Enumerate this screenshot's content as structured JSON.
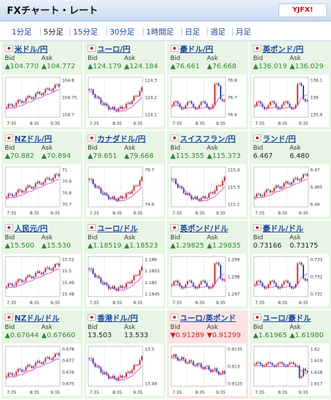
{
  "header": {
    "title": "FXチャート・レート",
    "logo": "YJFX!"
  },
  "tabs": [
    "1分足",
    "5分足",
    "15分足",
    "30分足",
    "1時間足",
    "日足",
    "週足",
    "月足"
  ],
  "active_tab": "5分足",
  "labels": {
    "bid": "Bid",
    "ask": "Ask"
  },
  "x_ticks": [
    "7:35",
    "8:35",
    "9:35"
  ],
  "pairs": [
    {
      "name": "米ドル/円",
      "bid": "104.770",
      "ask": "104.772",
      "dir": "up",
      "yticks": [
        "104.8",
        "104.75",
        "104.7"
      ],
      "shape": "rise"
    },
    {
      "name": "ユーロ/円",
      "bid": "124.179",
      "ask": "124.184",
      "dir": "up",
      "yticks": [
        "124.3",
        "124.2",
        "124.1"
      ],
      "shape": "v"
    },
    {
      "name": "豪ドル/円",
      "bid": "76.661",
      "ask": "76.668",
      "dir": "up",
      "yticks": [
        "76.8",
        "76.7",
        "76.6"
      ],
      "shape": "spike"
    },
    {
      "name": "英ポンド/円",
      "bid": "136.019",
      "ask": "136.029",
      "dir": "up",
      "yticks": [
        "136.1",
        "136",
        "135.9"
      ],
      "shape": "spike"
    },
    {
      "name": "NZドル/円",
      "bid": "70.882",
      "ask": "70.894",
      "dir": "up",
      "yticks": [
        "71",
        "70.9",
        "70.8",
        "70.7"
      ],
      "shape": "rise"
    },
    {
      "name": "カナダドル/円",
      "bid": "79.651",
      "ask": "79.668",
      "dir": "up",
      "yticks": [
        "79.7",
        "79.6"
      ],
      "shape": "v"
    },
    {
      "name": "スイスフラン/円",
      "bid": "115.355",
      "ask": "115.373",
      "dir": "up",
      "yticks": [
        "115.4",
        "115.3",
        "115.2"
      ],
      "shape": "v"
    },
    {
      "name": "ランド/円",
      "bid": "6.467",
      "ask": "6.480",
      "dir": "neutral",
      "yticks": [
        "6.47",
        "6.465",
        "6.46"
      ],
      "shape": "rise"
    },
    {
      "name": "人民元/円",
      "bid": "15.500",
      "ask": "15.530",
      "dir": "up",
      "yticks": [
        "15.51",
        "15.5",
        "15.49",
        "15.48"
      ],
      "shape": "rise"
    },
    {
      "name": "ユーロ/ドル",
      "bid": "1.18519",
      "ask": "1.18523",
      "dir": "up",
      "yticks": [
        "1.186",
        "1.1855",
        "1.185",
        "1.1845"
      ],
      "shape": "v"
    },
    {
      "name": "英ポンド/ドル",
      "bid": "1.29825",
      "ask": "1.29835",
      "dir": "up",
      "yticks": [
        "1.299",
        "1.298",
        "1.297"
      ],
      "shape": "spike"
    },
    {
      "name": "豪ドル/ドル",
      "bid": "0.73166",
      "ask": "0.73175",
      "dir": "neutral",
      "yticks": [
        "0.733",
        "0.732",
        "0.731"
      ],
      "shape": "spike"
    },
    {
      "name": "NZドル/ドル",
      "bid": "0.67644",
      "ask": "0.67660",
      "dir": "up",
      "yticks": [
        "0.678",
        "0.677",
        "0.676",
        "0.675"
      ],
      "shape": "rise"
    },
    {
      "name": "香港ドル/円",
      "bid": "13.503",
      "ask": "13.533",
      "dir": "neutral",
      "yticks": [
        "13.5",
        "13.49"
      ],
      "shape": "v"
    },
    {
      "name": "ユーロ/英ポンド",
      "bid": "0.91289",
      "ask": "0.91299",
      "dir": "down",
      "yticks": [
        "0.9135",
        "0.913",
        "0.9125"
      ],
      "shape": "fall"
    },
    {
      "name": "ユーロ/豪ドル",
      "bid": "1.61965",
      "ask": "1.61980",
      "dir": "up",
      "yticks": [
        "1.62",
        "1.619",
        "1.618",
        "1.617"
      ],
      "shape": "dip"
    }
  ]
}
